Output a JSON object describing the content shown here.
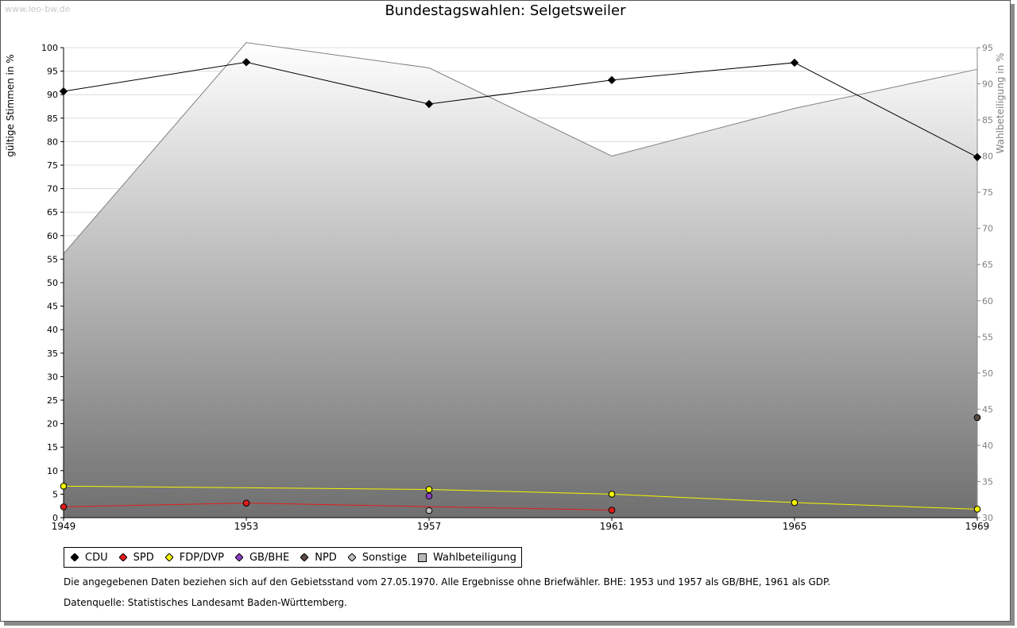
{
  "watermark": "www.leo-bw.de",
  "chart_data": {
    "type": "line",
    "title": "Bundestagswahlen: Selgetsweiler",
    "x": [
      1949,
      1953,
      1957,
      1961,
      1965,
      1969
    ],
    "x_tick_labels": [
      "1949",
      "1953",
      "1957",
      "1961",
      "1965",
      "1969"
    ],
    "ylabel": "gültige Stimmen in %",
    "y2label": "Wahlbeteiligung in %",
    "ylim": [
      0,
      100
    ],
    "y_ticks": [
      0,
      5,
      10,
      15,
      20,
      25,
      30,
      35,
      40,
      45,
      50,
      55,
      60,
      65,
      70,
      75,
      80,
      85,
      90,
      95,
      100
    ],
    "y2lim": [
      30,
      95
    ],
    "y2_ticks": [
      30,
      35,
      40,
      45,
      50,
      55,
      60,
      65,
      70,
      75,
      80,
      85,
      90,
      95
    ],
    "grid": true,
    "legend_position": "bottom",
    "series": [
      {
        "name": "CDU",
        "color": "#000000",
        "axis": "left",
        "values": [
          90.7,
          96.9,
          88.0,
          93.1,
          96.8,
          76.7
        ]
      },
      {
        "name": "SPD",
        "color": "#e31b1b",
        "axis": "left",
        "values": [
          2.3,
          3.1,
          null,
          1.6,
          null,
          null
        ]
      },
      {
        "name": "FDP/DVP",
        "color": "#f5f500",
        "axis": "left",
        "values": [
          6.7,
          null,
          6.0,
          5.0,
          3.2,
          1.8
        ]
      },
      {
        "name": "GB/BHE",
        "color": "#8a3fc0",
        "axis": "left",
        "values": [
          null,
          null,
          4.6,
          null,
          null,
          null
        ]
      },
      {
        "name": "NPD",
        "color": "#5a4a42",
        "axis": "left",
        "values": [
          null,
          null,
          null,
          null,
          null,
          21.3
        ]
      },
      {
        "name": "Sonstige",
        "color": "#c0c0c0",
        "axis": "left",
        "values": [
          null,
          null,
          1.5,
          null,
          null,
          null
        ]
      },
      {
        "name": "Wahlbeteiligung",
        "color": "#808080",
        "axis": "right",
        "type": "area",
        "values": [
          66.5,
          95.7,
          92.2,
          80.0,
          86.6,
          92.0
        ]
      }
    ]
  },
  "legend": {
    "items": [
      "CDU",
      "SPD",
      "FDP/DVP",
      "GB/BHE",
      "NPD",
      "Sonstige",
      "Wahlbeteiligung"
    ]
  },
  "notes": {
    "gebietsstand": "Die angegebenen Daten beziehen sich auf den Gebietsstand vom 27.05.1970. Alle Ergebnisse ohne Briefwähler. BHE: 1953 und 1957 als GB/BHE, 1961 als GDP.",
    "quelle": "Datenquelle: Statistisches Landesamt Baden-Württemberg."
  }
}
